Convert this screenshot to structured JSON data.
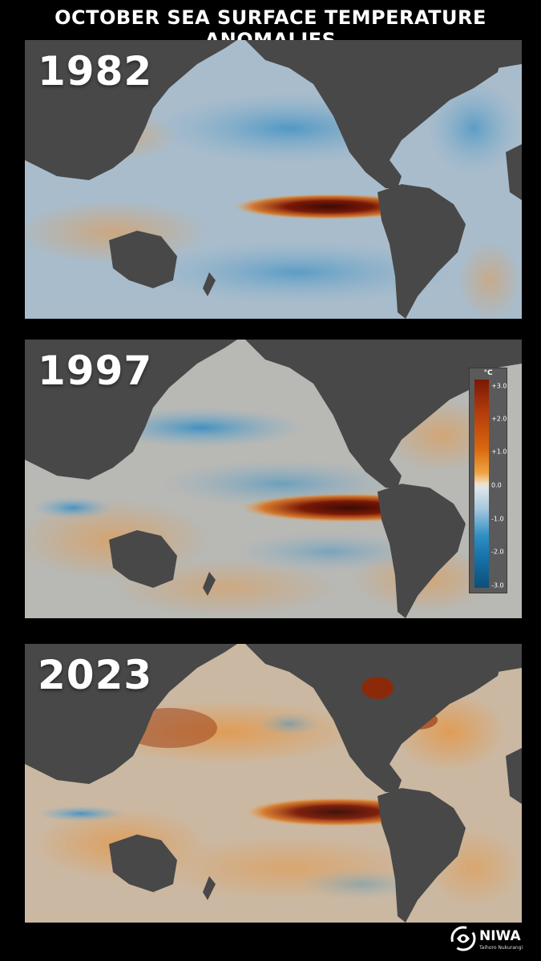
{
  "title": "OCTOBER SEA SURFACE TEMPERATURE ANOMALIES",
  "panels": [
    {
      "year": "1982"
    },
    {
      "year": "1997"
    },
    {
      "year": "2023"
    }
  ],
  "legend": {
    "unit": "°C",
    "ticks": [
      "+3.0",
      "+2.0",
      "+1.0",
      "0.0",
      "-1.0",
      "-2.0",
      "-3.0"
    ],
    "colors": {
      "hot": "#7a1806",
      "warm": "#d9670d",
      "neutral": "#e6e4e0",
      "cool": "#2f8fc4",
      "cold": "#0d4f79"
    }
  },
  "logo": {
    "name": "NIWA",
    "subtitle": "Taihoro Nukurangi"
  },
  "colors": {
    "land": "#484848",
    "ocean_base": "#a9bccb"
  }
}
